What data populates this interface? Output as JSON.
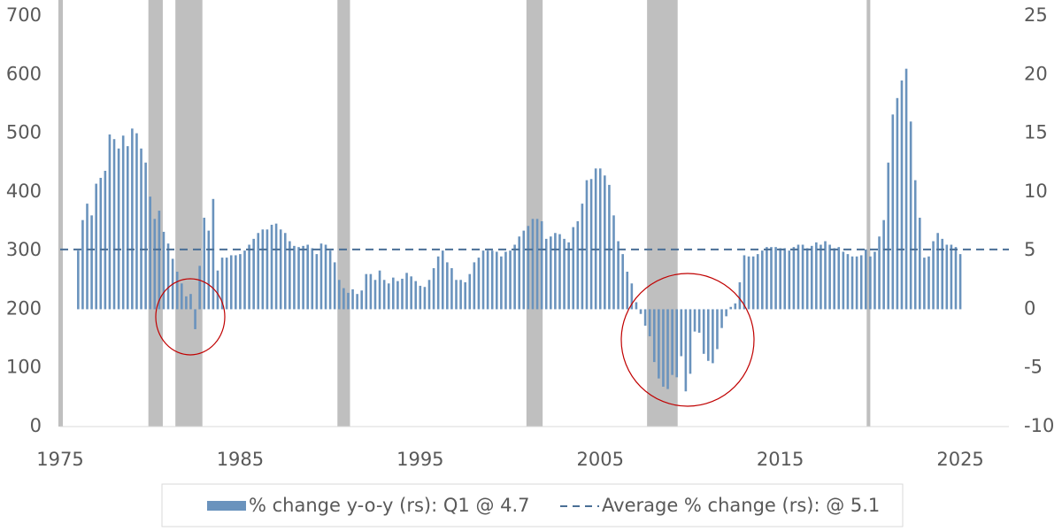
{
  "chart_data": {
    "type": "bar",
    "x": [
      1976,
      1976.25,
      1976.5,
      1976.75,
      1977,
      1977.25,
      1977.5,
      1977.75,
      1978,
      1978.25,
      1978.5,
      1978.75,
      1979,
      1979.25,
      1979.5,
      1979.75,
      1980,
      1980.25,
      1980.5,
      1980.75,
      1981,
      1981.25,
      1981.5,
      1981.75,
      1982,
      1982.25,
      1982.5,
      1982.75,
      1983,
      1983.25,
      1983.5,
      1983.75,
      1984,
      1984.25,
      1984.5,
      1984.75,
      1985,
      1985.25,
      1985.5,
      1985.75,
      1986,
      1986.25,
      1986.5,
      1986.75,
      1987,
      1987.25,
      1987.5,
      1987.75,
      1988,
      1988.25,
      1988.5,
      1988.75,
      1989,
      1989.25,
      1989.5,
      1989.75,
      1990,
      1990.25,
      1990.5,
      1990.75,
      1991,
      1991.25,
      1991.5,
      1991.75,
      1992,
      1992.25,
      1992.5,
      1992.75,
      1993,
      1993.25,
      1993.5,
      1993.75,
      1994,
      1994.25,
      1994.5,
      1994.75,
      1995,
      1995.25,
      1995.5,
      1995.75,
      1996,
      1996.25,
      1996.5,
      1996.75,
      1997,
      1997.25,
      1997.5,
      1997.75,
      1998,
      1998.25,
      1998.5,
      1998.75,
      1999,
      1999.25,
      1999.5,
      1999.75,
      2000,
      2000.25,
      2000.5,
      2000.75,
      2001,
      2001.25,
      2001.5,
      2001.75,
      2002,
      2002.25,
      2002.5,
      2002.75,
      2003,
      2003.25,
      2003.5,
      2003.75,
      2004,
      2004.25,
      2004.5,
      2004.75,
      2005,
      2005.25,
      2005.5,
      2005.75,
      2006,
      2006.25,
      2006.5,
      2006.75,
      2007,
      2007.25,
      2007.5,
      2007.75,
      2008,
      2008.25,
      2008.5,
      2008.75,
      2009,
      2009.25,
      2009.5,
      2009.75,
      2010,
      2010.25,
      2010.5,
      2010.75,
      2011,
      2011.25,
      2011.5,
      2011.75,
      2012,
      2012.25,
      2012.5,
      2012.75,
      2013,
      2013.25,
      2013.5,
      2013.75,
      2014,
      2014.25,
      2014.5,
      2014.75,
      2015,
      2015.25,
      2015.5,
      2015.75,
      2016,
      2016.25,
      2016.5,
      2016.75,
      2017,
      2017.25,
      2017.5,
      2017.75,
      2018,
      2018.25,
      2018.5,
      2018.75,
      2019,
      2019.25,
      2019.5,
      2019.75,
      2020,
      2020.25,
      2020.5,
      2020.75,
      2021,
      2021.25,
      2021.5,
      2021.75,
      2022,
      2022.25,
      2022.5,
      2022.75,
      2023,
      2023.25,
      2023.5,
      2023.75,
      2024,
      2024.25,
      2024.5,
      2024.75,
      2025
    ],
    "series": [
      {
        "name": "% change y-o-y (rs): Q1 @ 4.7",
        "color": "#6a93bd",
        "axis": "y2",
        "values": [
          5.0,
          7.6,
          9.0,
          8.0,
          10.7,
          11.2,
          11.8,
          14.9,
          14.5,
          13.7,
          14.8,
          13.9,
          15.4,
          15.0,
          13.7,
          12.5,
          9.6,
          7.7,
          8.4,
          6.6,
          5.6,
          4.3,
          3.2,
          2.2,
          1.1,
          1.3,
          -1.7,
          3.7,
          7.8,
          6.7,
          9.4,
          3.3,
          4.4,
          4.4,
          4.6,
          4.6,
          4.7,
          5.0,
          5.5,
          6.0,
          6.5,
          6.8,
          6.8,
          7.2,
          7.3,
          6.8,
          6.5,
          5.8,
          5.4,
          5.3,
          5.4,
          5.5,
          5.2,
          4.7,
          5.6,
          5.5,
          5.0,
          4.0,
          2.5,
          1.8,
          1.4,
          1.7,
          1.3,
          1.6,
          3.0,
          3.0,
          2.5,
          3.3,
          2.5,
          2.2,
          2.7,
          2.4,
          2.6,
          3.1,
          2.8,
          2.4,
          2.0,
          1.9,
          2.5,
          3.5,
          4.5,
          5.0,
          4.0,
          3.5,
          2.5,
          2.5,
          2.3,
          3.0,
          4.0,
          4.4,
          5.0,
          5.0,
          5.0,
          4.9,
          4.5,
          4.9,
          5.0,
          5.5,
          6.2,
          6.7,
          7.1,
          7.7,
          7.7,
          7.5,
          6.0,
          6.2,
          6.5,
          6.4,
          6.0,
          5.7,
          7.0,
          7.5,
          9.0,
          11.0,
          11.1,
          12.0,
          12.0,
          11.4,
          10.6,
          8.0,
          5.8,
          4.7,
          3.2,
          2.2,
          0.6,
          -0.4,
          -1.4,
          -2.3,
          -4.5,
          -5.9,
          -6.6,
          -6.8,
          -5.6,
          -5.8,
          -4.0,
          -7.0,
          -5.5,
          -1.9,
          -2.0,
          -3.8,
          -4.4,
          -4.6,
          -3.4,
          -1.6,
          -0.6,
          0.2,
          0.5,
          2.3,
          4.6,
          4.5,
          4.5,
          4.7,
          5.0,
          5.3,
          5.3,
          5.3,
          5.2,
          5.2,
          5.0,
          5.3,
          5.5,
          5.5,
          5.2,
          5.4,
          5.7,
          5.5,
          5.8,
          5.5,
          5.2,
          5.3,
          4.9,
          4.7,
          4.5,
          4.5,
          4.6,
          5.1,
          4.5,
          4.9,
          6.2,
          7.6,
          12.5,
          16.6,
          18.0,
          19.5,
          20.5,
          16.0,
          11.0,
          7.8,
          4.4,
          4.5,
          5.8,
          6.5,
          6.0,
          5.5,
          5.5,
          5.3,
          4.7
        ]
      },
      {
        "name": "Average % change (rs): @ 5.1",
        "color": "#4a6f96",
        "axis": "y2",
        "type": "hline",
        "value": 5.1
      }
    ],
    "shading": [
      [
        1974.9,
        1975.15
      ],
      [
        1979.9,
        1980.7
      ],
      [
        1981.4,
        1982.9
      ],
      [
        1990.4,
        1991.1
      ],
      [
        2000.9,
        2001.8
      ],
      [
        2007.6,
        2009.3
      ],
      [
        2019.8,
        2020.0
      ]
    ],
    "shading_color": "#bfbfbf",
    "xlim": [
      1975,
      2027.7
    ],
    "xticks": [
      1975,
      1985,
      1995,
      2005,
      2015,
      2025
    ],
    "ylim": [
      0,
      700
    ],
    "yticks": [
      0,
      100,
      200,
      300,
      400,
      500,
      600,
      700
    ],
    "y2lim": [
      -10,
      25
    ],
    "y2ticks": [
      -10,
      -5,
      0,
      5,
      10,
      15,
      20,
      25
    ]
  }
}
